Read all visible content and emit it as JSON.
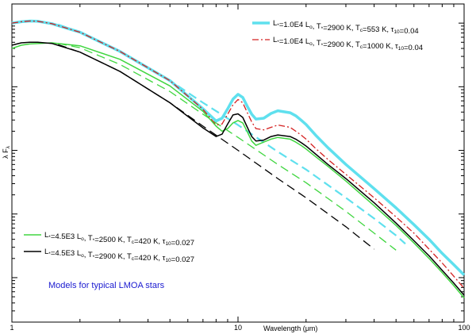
{
  "chart_data": {
    "type": "line",
    "xlabel": "Wavelength (μm)",
    "ylabel": "λ Fλ",
    "xscale": "log",
    "yscale": "log",
    "xlim": [
      1,
      100
    ],
    "ylim": [
      0.002,
      200
    ],
    "xticks": [
      {
        "value": 1,
        "label": "1"
      },
      {
        "value": 10,
        "label": "10"
      },
      {
        "value": 100,
        "label": "100"
      }
    ],
    "grid": false,
    "annotation": {
      "text": "Models for typical LMOA stars",
      "color": "#1a1ad0"
    },
    "legends": [
      {
        "position": "top-right",
        "entries": [
          "s1",
          "s2"
        ]
      },
      {
        "position": "bottom-left",
        "entries": [
          "s3",
          "s4"
        ]
      }
    ],
    "series": [
      {
        "id": "s1",
        "name": "L∗=1.0E4 L⊙, T∗=2900 K, Tc=553 K, τ10=0.04",
        "legend": {
          "main": "L",
          "sub": [
            "*",
            "o",
            "*",
            "c",
            "10"
          ],
          "pieces": [
            "=1.0E4 L",
            ", T",
            "=2900 K, T",
            "=553 K, τ",
            "=0.04"
          ]
        },
        "color": "#5fe0ee",
        "style": "solid",
        "width": 3.5,
        "x": [
          1,
          1.1,
          1.2,
          1.3,
          1.5,
          2,
          3,
          5,
          7,
          8,
          8.5,
          9,
          9.5,
          10,
          10.5,
          11,
          11.5,
          12,
          13,
          14,
          15,
          17,
          18,
          19,
          20,
          22,
          25,
          30,
          40,
          50,
          60,
          70,
          80,
          90,
          100
        ],
        "y": [
          100,
          105,
          108,
          107,
          98,
          72,
          36,
          12.5,
          4.5,
          2.9,
          3.2,
          4.5,
          6.4,
          7.6,
          6.8,
          4.9,
          3.7,
          3.1,
          3.2,
          3.8,
          4.2,
          3.9,
          3.5,
          3.0,
          2.55,
          1.75,
          1.1,
          0.6,
          0.25,
          0.125,
          0.068,
          0.04,
          0.024,
          0.016,
          0.011
        ]
      },
      {
        "id": "s2",
        "name": "L∗=1.0E4 L⊙, T∗=2900 K, Tc=1000 K, τ10=0.04",
        "legend": {
          "main": "L",
          "sub": [
            "*",
            "o",
            "*",
            "c",
            "10"
          ],
          "pieces": [
            "=1.0E4 L",
            ", T",
            "=2900 K, T",
            "=1000 K, τ",
            "=0.04"
          ]
        },
        "color": "#d42020",
        "style": "dashdot",
        "width": 1.3,
        "x": [
          1,
          1.1,
          1.2,
          1.3,
          1.5,
          2,
          3,
          5,
          7,
          8,
          8.5,
          9,
          9.5,
          10,
          10.5,
          11,
          11.5,
          12,
          13,
          14,
          15,
          17,
          18,
          19,
          20,
          22,
          25,
          30,
          40,
          50,
          60,
          70,
          80,
          90,
          100
        ],
        "y": [
          100,
          105,
          108,
          107,
          98,
          72,
          36,
          12.5,
          4.4,
          2.5,
          2.6,
          3.7,
          5.2,
          6.3,
          5.6,
          3.9,
          2.8,
          2.2,
          2.1,
          2.3,
          2.5,
          2.3,
          2.0,
          1.75,
          1.5,
          1.08,
          0.72,
          0.42,
          0.18,
          0.09,
          0.05,
          0.028,
          0.017,
          0.0105,
          0.0068
        ]
      },
      {
        "id": "s3",
        "name": "L∗=4.5E3 L⊙, T∗=2500 K, Tc=420 K, τ10=0.027",
        "legend": {
          "main": "L",
          "sub": [
            "*",
            "o",
            "*",
            "c",
            "10"
          ],
          "pieces": [
            "=4.5E3 L",
            ", T",
            "=2500 K, T",
            "=420 K, τ",
            "=0.027"
          ]
        },
        "color": "#40d640",
        "style": "solid",
        "width": 1.5,
        "x": [
          1,
          1.1,
          1.2,
          1.5,
          2,
          3,
          5,
          7,
          8,
          8.5,
          9,
          9.5,
          10,
          10.5,
          11,
          11.5,
          12,
          13,
          14,
          15,
          17,
          18,
          19,
          20,
          22,
          25,
          30,
          40,
          50,
          60,
          70,
          80,
          90,
          100
        ],
        "y": [
          40,
          45,
          47,
          49,
          44,
          27,
          10.3,
          4.1,
          2.4,
          2.0,
          2.2,
          2.7,
          2.95,
          2.7,
          1.95,
          1.4,
          1.2,
          1.35,
          1.5,
          1.6,
          1.5,
          1.35,
          1.2,
          1.05,
          0.8,
          0.56,
          0.33,
          0.135,
          0.066,
          0.035,
          0.02,
          0.012,
          0.0075,
          0.0048
        ]
      },
      {
        "id": "s4",
        "name": "L∗=4.5E3 L⊙, T∗=2900 K, Tc=420 K, τ10=0.027",
        "legend": {
          "main": "L",
          "sub": [
            "*",
            "o",
            "*",
            "c",
            "10"
          ],
          "pieces": [
            "=4.5E3 L",
            ", T",
            "=2900 K, T",
            "=420 K, τ",
            "=0.027"
          ]
        },
        "color": "#000000",
        "style": "solid",
        "width": 1.5,
        "x": [
          1,
          1.1,
          1.2,
          1.3,
          1.5,
          2,
          3,
          5,
          7,
          8,
          8.5,
          9,
          9.5,
          10,
          10.5,
          11,
          11.5,
          12,
          13,
          14,
          15,
          17,
          18,
          19,
          20,
          22,
          25,
          30,
          40,
          50,
          60,
          70,
          80,
          90,
          100
        ],
        "y": [
          45,
          49,
          50,
          50,
          48,
          35,
          17.5,
          5.6,
          2.25,
          1.65,
          1.8,
          2.6,
          3.6,
          3.75,
          3.3,
          2.3,
          1.65,
          1.4,
          1.45,
          1.65,
          1.75,
          1.65,
          1.5,
          1.33,
          1.17,
          0.88,
          0.6,
          0.36,
          0.15,
          0.072,
          0.038,
          0.022,
          0.013,
          0.0082,
          0.0053
        ]
      },
      {
        "color": "#5fe0ee",
        "style": "dashed",
        "width": 2.2,
        "x": [
          1.6,
          2,
          3,
          5,
          7,
          10,
          15,
          20,
          30,
          40,
          50,
          55
        ],
        "y": [
          95,
          72,
          36,
          12.5,
          5.6,
          2.5,
          0.95,
          0.5,
          0.18,
          0.085,
          0.046,
          0.034
        ]
      },
      {
        "color": "#40d640",
        "style": "dashed",
        "width": 1.3,
        "x": [
          1.6,
          2,
          3,
          5,
          7,
          10,
          15,
          20,
          30,
          40,
          50
        ],
        "y": [
          48,
          41,
          22.5,
          8.4,
          3.7,
          1.6,
          0.6,
          0.31,
          0.11,
          0.05,
          0.027
        ]
      },
      {
        "color": "#000000",
        "style": "dashed",
        "width": 1.3,
        "x": [
          1.6,
          2,
          3,
          5,
          7,
          10,
          15,
          20,
          30,
          40
        ],
        "y": [
          46,
          35,
          17.5,
          5.6,
          2.4,
          1.0,
          0.36,
          0.18,
          0.063,
          0.028
        ]
      }
    ]
  }
}
